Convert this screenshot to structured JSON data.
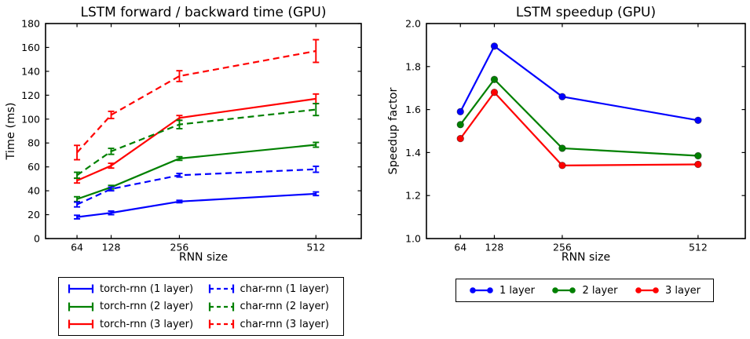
{
  "figure": {
    "background": "#ffffff"
  },
  "chart_data": [
    {
      "type": "line",
      "title": "LSTM forward / backward time (GPU)",
      "xlabel": "RNN size",
      "ylabel": "Time (ms)",
      "x": [
        64,
        128,
        256,
        512
      ],
      "xlim": [
        5,
        597
      ],
      "ylim": [
        0,
        180
      ],
      "xticks": [
        64,
        128,
        256,
        512
      ],
      "xtick_labels": [
        "64",
        "128",
        "256",
        "512"
      ],
      "yticks": [
        0,
        20,
        40,
        60,
        80,
        100,
        120,
        140,
        160,
        180
      ],
      "ytick_labels": [
        "0",
        "20",
        "40",
        "60",
        "80",
        "100",
        "120",
        "140",
        "160",
        "180"
      ],
      "grid": false,
      "legend_position": "below, 2 columns",
      "series": [
        {
          "name": "torch-rnn (1 layer)",
          "color": "#0000ff",
          "style": "solid",
          "marker": "none",
          "values": [
            18,
            21.5,
            31,
            37.5
          ],
          "errors": [
            1.5,
            1.5,
            1,
            1.5
          ]
        },
        {
          "name": "torch-rnn (2 layer)",
          "color": "#008000",
          "style": "solid",
          "marker": "none",
          "values": [
            33,
            43,
            67,
            78.5
          ],
          "errors": [
            2,
            1.5,
            1.5,
            2
          ]
        },
        {
          "name": "torch-rnn (3 layer)",
          "color": "#ff0000",
          "style": "solid",
          "marker": "none",
          "values": [
            48.5,
            61,
            101,
            117
          ],
          "errors": [
            2,
            2,
            2,
            4
          ]
        },
        {
          "name": "char-rnn (1 layer)",
          "color": "#0000ff",
          "style": "dashed",
          "marker": "none",
          "values": [
            28.5,
            41.5,
            53,
            58
          ],
          "errors": [
            2,
            1.5,
            1.5,
            2.5
          ]
        },
        {
          "name": "char-rnn (2 layer)",
          "color": "#008000",
          "style": "dashed",
          "marker": "none",
          "values": [
            53,
            73,
            95.5,
            108
          ],
          "errors": [
            2.5,
            2.5,
            3.5,
            5
          ]
        },
        {
          "name": "char-rnn (3 layer)",
          "color": "#ff0000",
          "style": "dashed",
          "marker": "none",
          "values": [
            72,
            103.5,
            136,
            157
          ],
          "errors": [
            6,
            3,
            4.5,
            9.5
          ]
        }
      ]
    },
    {
      "type": "line",
      "title": "LSTM speedup (GPU)",
      "xlabel": "RNN size",
      "ylabel": "Speedup factor",
      "x": [
        64,
        128,
        256,
        512
      ],
      "xlim": [
        0,
        601
      ],
      "ylim": [
        1.0,
        2.0
      ],
      "xticks": [
        64,
        128,
        256,
        512
      ],
      "xtick_labels": [
        "64",
        "128",
        "256",
        "512"
      ],
      "yticks": [
        1.0,
        1.2,
        1.4,
        1.6,
        1.8,
        2.0
      ],
      "ytick_labels": [
        "1.0",
        "1.2",
        "1.4",
        "1.6",
        "1.8",
        "2.0"
      ],
      "grid": false,
      "legend_position": "below, horizontal row",
      "series": [
        {
          "name": "1 layer",
          "color": "#0000ff",
          "style": "solid",
          "marker": "circle",
          "values": [
            1.59,
            1.895,
            1.66,
            1.55
          ]
        },
        {
          "name": "2 layer",
          "color": "#008000",
          "style": "solid",
          "marker": "circle",
          "values": [
            1.53,
            1.74,
            1.42,
            1.385
          ]
        },
        {
          "name": "3 layer",
          "color": "#ff0000",
          "style": "solid",
          "marker": "circle",
          "values": [
            1.465,
            1.68,
            1.34,
            1.345
          ]
        }
      ]
    }
  ]
}
